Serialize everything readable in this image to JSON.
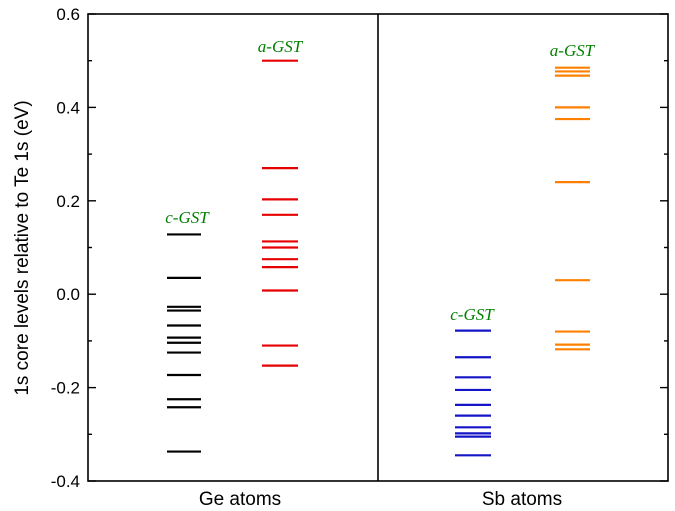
{
  "chart_data": {
    "type": "level-diagram",
    "ylabel": "1s core levels relative to Te 1s (eV)",
    "ylim": [
      -0.4,
      0.6
    ],
    "y_major_ticks": [
      -0.4,
      -0.2,
      0.0,
      0.2,
      0.4,
      0.6
    ],
    "y_tick_labels": [
      "-0.4",
      "-0.2",
      "0.0",
      "0.2",
      "0.4",
      "0.6"
    ],
    "y_minor_step": 0.1,
    "panels": [
      {
        "name": "ge",
        "xlabel": "Ge atoms",
        "series": [
          {
            "name": "c-GST",
            "color": "#000000",
            "values": [
              0.128,
              0.035,
              -0.027,
              -0.035,
              -0.067,
              -0.093,
              -0.104,
              -0.125,
              -0.173,
              -0.225,
              -0.242,
              -0.337
            ]
          },
          {
            "name": "a-GST",
            "color": "#e60000",
            "values": [
              0.5,
              0.27,
              0.203,
              0.17,
              0.113,
              0.1,
              0.075,
              0.058,
              0.008,
              -0.11,
              -0.153
            ]
          }
        ]
      },
      {
        "name": "sb",
        "xlabel": "Sb atoms",
        "series": [
          {
            "name": "c-GST",
            "color": "#1515c8",
            "values": [
              -0.078,
              -0.135,
              -0.178,
              -0.205,
              -0.237,
              -0.26,
              -0.285,
              -0.298,
              -0.305,
              -0.345
            ]
          },
          {
            "name": "a-GST",
            "color": "#ff8000",
            "values": [
              0.485,
              0.477,
              0.468,
              0.4,
              0.375,
              0.24,
              0.03,
              -0.08,
              -0.108,
              -0.118
            ]
          }
        ]
      }
    ],
    "label_color": "#008000"
  }
}
